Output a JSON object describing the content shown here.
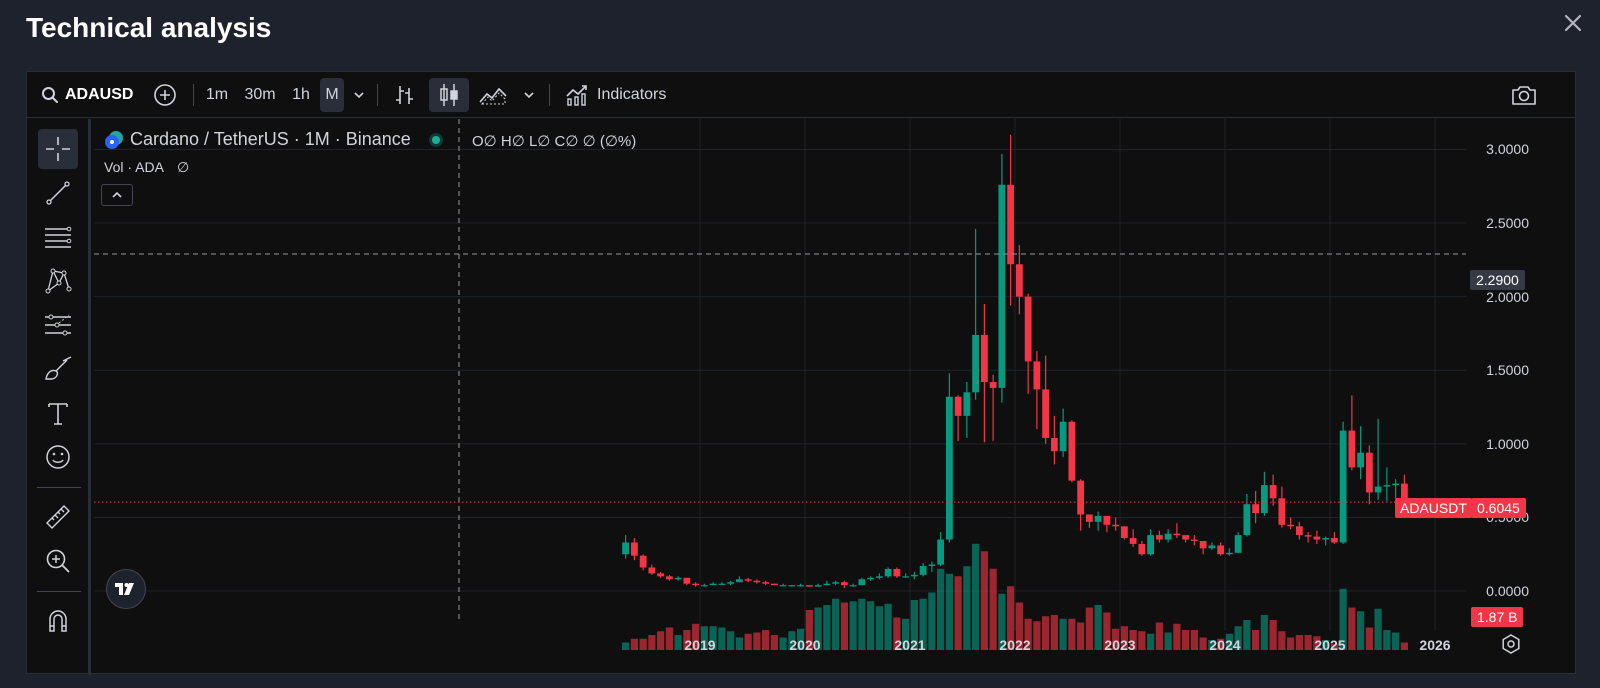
{
  "modal": {
    "title": "Technical analysis"
  },
  "toolbar": {
    "symbol": "ADAUSD",
    "intervals": [
      "1m",
      "30m",
      "1h",
      "M"
    ],
    "indicators_label": "Indicators"
  },
  "legend": {
    "title": "Cardano / TetherUS · 1M · Binance",
    "ohlc": "O∅ H∅ L∅ C∅ ∅ (∅%)",
    "vol": "Vol · ADA",
    "vol_value": "∅"
  },
  "price_axis": {
    "ticks": [
      "3.0000",
      "2.5000",
      "2.0000",
      "1.5000",
      "1.0000",
      "0.5000",
      "0.0000"
    ],
    "crosshair_price": "2.2900",
    "last_price_symbol": "ADAUSDT",
    "last_price": "0.6045",
    "volume_label": "1.87 B"
  },
  "time_axis": {
    "ticks": [
      "2019",
      "2020",
      "2021",
      "2022",
      "2023",
      "2024",
      "2025",
      "2026"
    ]
  },
  "colors": {
    "up": "#089981",
    "down": "#f23645",
    "background": "#0f0f0f",
    "grid": "#1f2228"
  },
  "chart_data": {
    "type": "candlestick",
    "title": "Cardano / TetherUS · 1M · Binance",
    "x_start": "2018-04",
    "interval": "1M",
    "ylim": [
      -0.27,
      3.2
    ],
    "last_price": 0.6045,
    "crosshair_price": 2.29,
    "candles": [
      [
        0.25,
        0.38,
        0.22,
        0.33
      ],
      [
        0.33,
        0.36,
        0.21,
        0.24
      ],
      [
        0.24,
        0.25,
        0.14,
        0.16
      ],
      [
        0.16,
        0.18,
        0.11,
        0.12
      ],
      [
        0.12,
        0.13,
        0.09,
        0.1
      ],
      [
        0.1,
        0.11,
        0.07,
        0.08
      ],
      [
        0.08,
        0.1,
        0.07,
        0.09
      ],
      [
        0.09,
        0.09,
        0.04,
        0.05
      ],
      [
        0.05,
        0.06,
        0.03,
        0.04
      ],
      [
        0.04,
        0.05,
        0.03,
        0.04
      ],
      [
        0.04,
        0.06,
        0.04,
        0.05
      ],
      [
        0.05,
        0.06,
        0.04,
        0.05
      ],
      [
        0.05,
        0.07,
        0.04,
        0.06
      ],
      [
        0.06,
        0.1,
        0.06,
        0.08
      ],
      [
        0.08,
        0.09,
        0.06,
        0.07
      ],
      [
        0.07,
        0.08,
        0.05,
        0.06
      ],
      [
        0.06,
        0.07,
        0.04,
        0.05
      ],
      [
        0.05,
        0.05,
        0.04,
        0.04
      ],
      [
        0.04,
        0.05,
        0.04,
        0.04
      ],
      [
        0.04,
        0.04,
        0.03,
        0.04
      ],
      [
        0.04,
        0.05,
        0.03,
        0.04
      ],
      [
        0.04,
        0.04,
        0.03,
        0.03
      ],
      [
        0.03,
        0.05,
        0.03,
        0.04
      ],
      [
        0.04,
        0.07,
        0.04,
        0.05
      ],
      [
        0.05,
        0.07,
        0.04,
        0.06
      ],
      [
        0.06,
        0.07,
        0.02,
        0.04
      ],
      [
        0.04,
        0.05,
        0.03,
        0.04
      ],
      [
        0.04,
        0.09,
        0.04,
        0.08
      ],
      [
        0.08,
        0.1,
        0.07,
        0.09
      ],
      [
        0.09,
        0.12,
        0.08,
        0.1
      ],
      [
        0.1,
        0.16,
        0.09,
        0.15
      ],
      [
        0.15,
        0.16,
        0.09,
        0.1
      ],
      [
        0.1,
        0.12,
        0.09,
        0.1
      ],
      [
        0.1,
        0.13,
        0.08,
        0.11
      ],
      [
        0.11,
        0.19,
        0.1,
        0.17
      ],
      [
        0.17,
        0.2,
        0.13,
        0.18
      ],
      [
        0.18,
        0.4,
        0.17,
        0.35
      ],
      [
        0.35,
        1.48,
        0.33,
        1.32
      ],
      [
        1.32,
        1.33,
        1.02,
        1.19
      ],
      [
        1.19,
        1.42,
        1.04,
        1.35
      ],
      [
        1.35,
        2.46,
        1.3,
        1.74
      ],
      [
        1.74,
        1.95,
        1.01,
        1.42
      ],
      [
        1.42,
        1.47,
        1.02,
        1.38
      ],
      [
        1.38,
        2.97,
        1.28,
        2.76
      ],
      [
        2.76,
        3.1,
        1.94,
        2.22
      ],
      [
        2.22,
        2.35,
        1.88,
        2.0
      ],
      [
        2.0,
        2.02,
        1.34,
        1.56
      ],
      [
        1.56,
        1.63,
        1.1,
        1.37
      ],
      [
        1.37,
        1.6,
        1.0,
        1.04
      ],
      [
        1.04,
        1.19,
        0.86,
        0.95
      ],
      [
        0.95,
        1.24,
        0.91,
        1.15
      ],
      [
        1.15,
        1.16,
        0.74,
        0.75
      ],
      [
        0.75,
        0.76,
        0.41,
        0.52
      ],
      [
        0.52,
        0.52,
        0.43,
        0.47
      ],
      [
        0.47,
        0.54,
        0.41,
        0.51
      ],
      [
        0.51,
        0.51,
        0.4,
        0.45
      ],
      [
        0.45,
        0.5,
        0.41,
        0.44
      ],
      [
        0.44,
        0.44,
        0.35,
        0.36
      ],
      [
        0.36,
        0.42,
        0.3,
        0.32
      ],
      [
        0.32,
        0.34,
        0.24,
        0.25
      ],
      [
        0.25,
        0.42,
        0.24,
        0.38
      ],
      [
        0.38,
        0.41,
        0.33,
        0.35
      ],
      [
        0.35,
        0.42,
        0.33,
        0.39
      ],
      [
        0.39,
        0.46,
        0.36,
        0.38
      ],
      [
        0.38,
        0.38,
        0.33,
        0.35
      ],
      [
        0.35,
        0.38,
        0.31,
        0.34
      ],
      [
        0.34,
        0.34,
        0.25,
        0.29
      ],
      [
        0.29,
        0.33,
        0.28,
        0.31
      ],
      [
        0.31,
        0.33,
        0.24,
        0.25
      ],
      [
        0.25,
        0.29,
        0.24,
        0.26
      ],
      [
        0.26,
        0.4,
        0.26,
        0.38
      ],
      [
        0.38,
        0.66,
        0.37,
        0.59
      ],
      [
        0.59,
        0.68,
        0.46,
        0.53
      ],
      [
        0.53,
        0.81,
        0.51,
        0.72
      ],
      [
        0.72,
        0.79,
        0.58,
        0.63
      ],
      [
        0.63,
        0.71,
        0.43,
        0.45
      ],
      [
        0.45,
        0.5,
        0.42,
        0.44
      ],
      [
        0.44,
        0.47,
        0.35,
        0.38
      ],
      [
        0.38,
        0.4,
        0.33,
        0.37
      ],
      [
        0.37,
        0.41,
        0.32,
        0.35
      ],
      [
        0.35,
        0.37,
        0.31,
        0.36
      ],
      [
        0.36,
        0.4,
        0.32,
        0.33
      ],
      [
        0.33,
        1.15,
        0.32,
        1.09
      ],
      [
        1.09,
        1.33,
        0.82,
        0.84
      ],
      [
        0.84,
        1.12,
        0.76,
        0.94
      ],
      [
        0.94,
        0.99,
        0.59,
        0.67
      ],
      [
        0.67,
        1.17,
        0.62,
        0.71
      ],
      [
        0.71,
        0.84,
        0.61,
        0.72
      ],
      [
        0.72,
        0.76,
        0.63,
        0.73
      ],
      [
        0.73,
        0.79,
        0.59,
        0.6
      ]
    ],
    "volume": [
      0.6,
      0.9,
      0.9,
      1.2,
      1.5,
      1.8,
      1.2,
      1.6,
      2.1,
      1.9,
      1.9,
      1.8,
      1.5,
      1.0,
      1.3,
      1.4,
      1.6,
      1.2,
      1.0,
      1.5,
      1.7,
      3.2,
      3.4,
      3.6,
      4.1,
      3.8,
      3.9,
      4.1,
      3.9,
      3.5,
      3.7,
      2.6,
      2.5,
      4.0,
      4.1,
      4.6,
      6.5,
      6.1,
      5.9,
      6.7,
      8.5,
      7.9,
      6.5,
      4.5,
      5.1,
      3.8,
      2.5,
      2.3,
      2.7,
      2.8,
      2.5,
      2.5,
      2.2,
      3.4,
      3.6,
      3.0,
      1.7,
      1.9,
      1.6,
      1.5,
      1.3,
      2.2,
      1.4,
      2.1,
      1.6,
      1.6,
      1.0,
      0.8,
      0.9,
      1.3,
      1.9,
      2.4,
      1.6,
      2.8,
      2.4,
      1.5,
      1.0,
      1.2,
      1.2,
      1.1,
      0.8,
      0.5,
      4.9,
      3.4,
      3.1,
      1.8,
      3.3,
      1.6,
      1.4,
      0.6
    ]
  }
}
